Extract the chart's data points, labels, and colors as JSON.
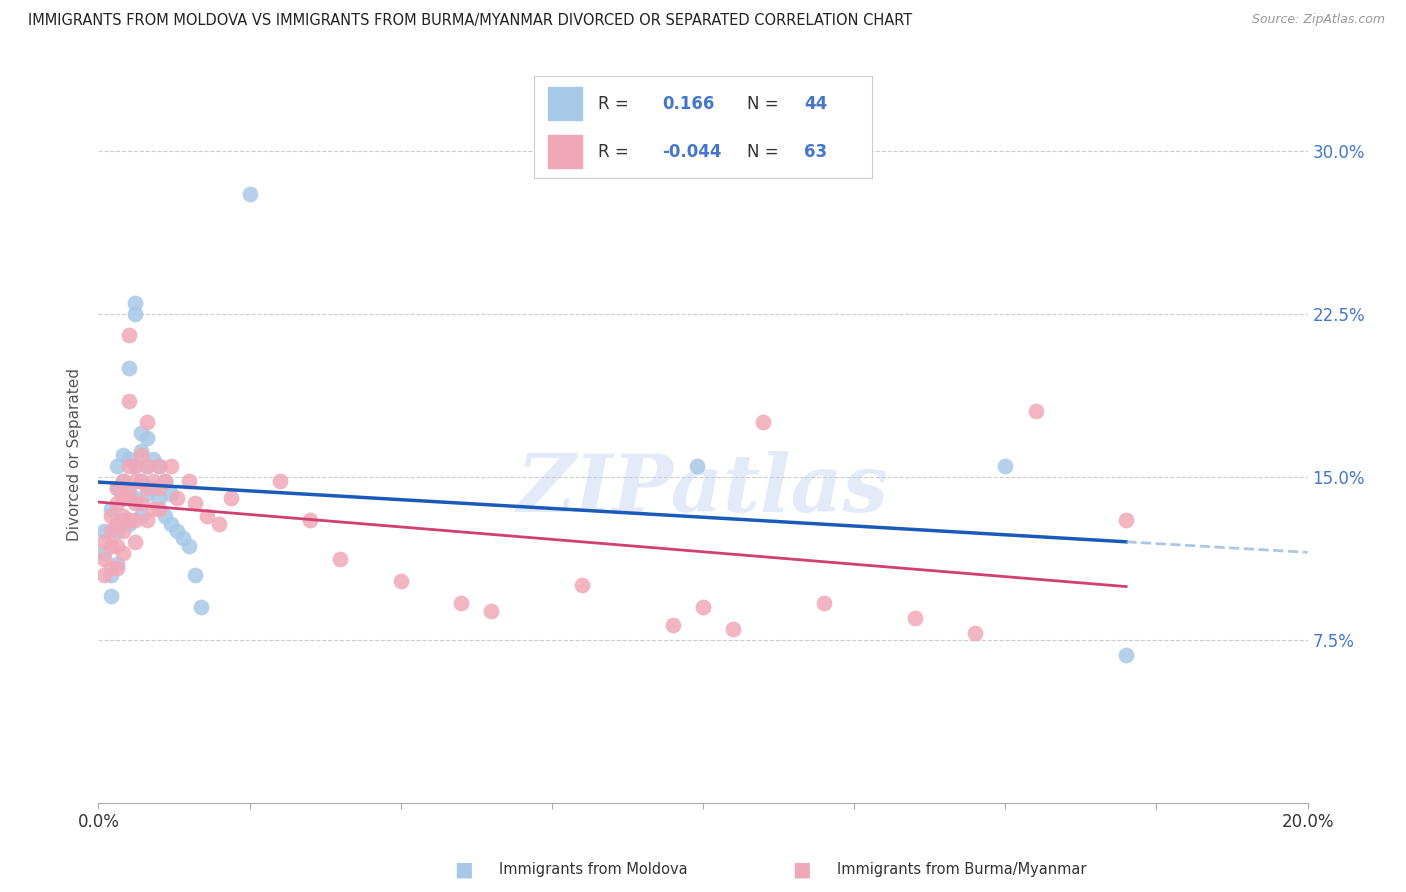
{
  "title": "IMMIGRANTS FROM MOLDOVA VS IMMIGRANTS FROM BURMA/MYANMAR DIVORCED OR SEPARATED CORRELATION CHART",
  "source": "Source: ZipAtlas.com",
  "xlabel_label": "Immigrants from Moldova",
  "xlabel_label2": "Immigrants from Burma/Myanmar",
  "ylabel": "Divorced or Separated",
  "xlim": [
    0.0,
    0.2
  ],
  "ylim": [
    0.0,
    0.32
  ],
  "xticks": [
    0.0,
    0.025,
    0.05,
    0.075,
    0.1,
    0.125,
    0.15,
    0.175,
    0.2
  ],
  "yticks": [
    0.075,
    0.15,
    0.225,
    0.3
  ],
  "ytick_labels_right": [
    "7.5%",
    "15.0%",
    "22.5%",
    "30.0%"
  ],
  "xtick_label_left": "0.0%",
  "xtick_label_right": "20.0%",
  "legend_R1": "0.166",
  "legend_N1": "44",
  "legend_R2": "-0.044",
  "legend_N2": "63",
  "color_moldova": "#a8c8e8",
  "color_burma": "#f0a8b8",
  "color_line_moldova": "#1a5ab8",
  "color_line_burma": "#d04070",
  "watermark": "ZIPatlas",
  "background_color": "#ffffff",
  "moldova_x": [
    0.001,
    0.001,
    0.002,
    0.002,
    0.002,
    0.003,
    0.003,
    0.003,
    0.003,
    0.004,
    0.004,
    0.004,
    0.005,
    0.005,
    0.005,
    0.005,
    0.006,
    0.006,
    0.006,
    0.006,
    0.007,
    0.007,
    0.007,
    0.007,
    0.008,
    0.008,
    0.008,
    0.009,
    0.009,
    0.01,
    0.01,
    0.011,
    0.011,
    0.012,
    0.012,
    0.013,
    0.014,
    0.015,
    0.016,
    0.017,
    0.025,
    0.099,
    0.15,
    0.17
  ],
  "moldova_y": [
    0.125,
    0.115,
    0.135,
    0.105,
    0.095,
    0.155,
    0.145,
    0.125,
    0.11,
    0.16,
    0.148,
    0.13,
    0.2,
    0.158,
    0.145,
    0.128,
    0.23,
    0.225,
    0.155,
    0.14,
    0.17,
    0.162,
    0.148,
    0.132,
    0.168,
    0.155,
    0.142,
    0.158,
    0.145,
    0.155,
    0.14,
    0.148,
    0.132,
    0.142,
    0.128,
    0.125,
    0.122,
    0.118,
    0.105,
    0.09,
    0.28,
    0.155,
    0.155,
    0.068
  ],
  "burma_x": [
    0.001,
    0.001,
    0.001,
    0.002,
    0.002,
    0.002,
    0.002,
    0.003,
    0.003,
    0.003,
    0.003,
    0.003,
    0.004,
    0.004,
    0.004,
    0.004,
    0.004,
    0.005,
    0.005,
    0.005,
    0.005,
    0.005,
    0.006,
    0.006,
    0.006,
    0.006,
    0.006,
    0.007,
    0.007,
    0.007,
    0.008,
    0.008,
    0.008,
    0.008,
    0.009,
    0.009,
    0.01,
    0.01,
    0.01,
    0.011,
    0.012,
    0.013,
    0.015,
    0.016,
    0.018,
    0.02,
    0.022,
    0.03,
    0.035,
    0.04,
    0.05,
    0.06,
    0.065,
    0.08,
    0.095,
    0.1,
    0.105,
    0.11,
    0.12,
    0.135,
    0.145,
    0.155,
    0.17
  ],
  "burma_y": [
    0.12,
    0.112,
    0.105,
    0.132,
    0.125,
    0.118,
    0.108,
    0.145,
    0.138,
    0.128,
    0.118,
    0.108,
    0.148,
    0.14,
    0.132,
    0.125,
    0.115,
    0.215,
    0.185,
    0.155,
    0.142,
    0.13,
    0.155,
    0.148,
    0.138,
    0.13,
    0.12,
    0.16,
    0.148,
    0.138,
    0.175,
    0.155,
    0.145,
    0.13,
    0.148,
    0.135,
    0.155,
    0.145,
    0.135,
    0.148,
    0.155,
    0.14,
    0.148,
    0.138,
    0.132,
    0.128,
    0.14,
    0.148,
    0.13,
    0.112,
    0.102,
    0.092,
    0.088,
    0.1,
    0.082,
    0.09,
    0.08,
    0.175,
    0.092,
    0.085,
    0.078,
    0.18,
    0.13
  ]
}
